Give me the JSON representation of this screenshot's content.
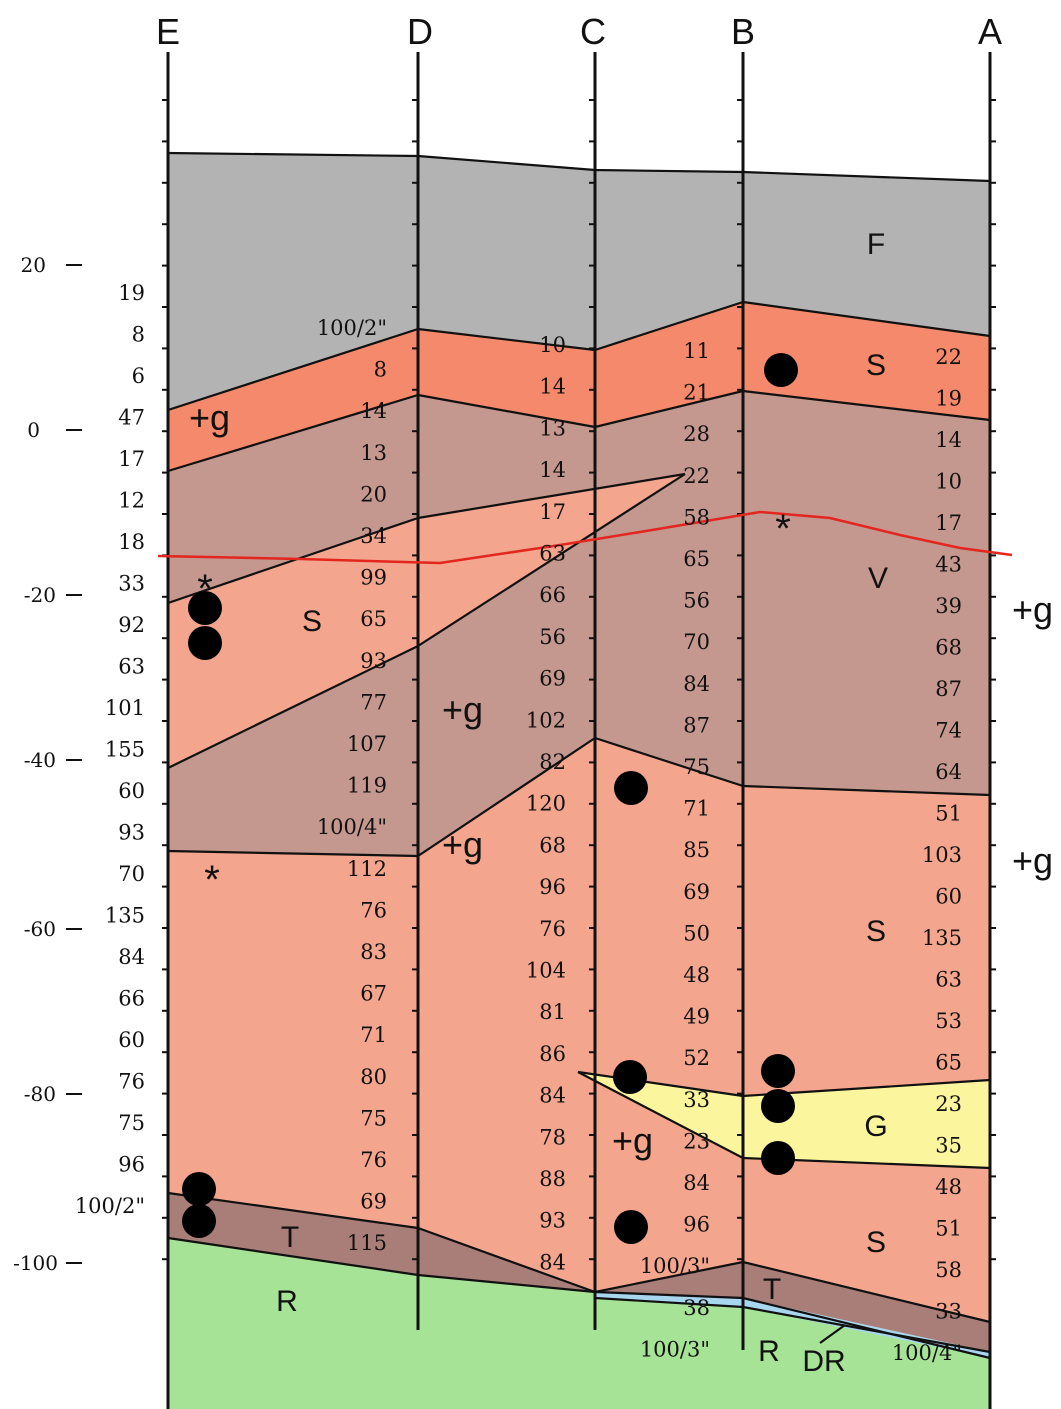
{
  "boreholes": [
    {
      "label": "E"
    },
    {
      "label": "D"
    },
    {
      "label": "C"
    },
    {
      "label": "B"
    },
    {
      "label": "A"
    }
  ],
  "elevation_ticks": [
    "20",
    "0",
    "-20",
    "-40",
    "-60",
    "-80",
    "-100"
  ],
  "layers": {
    "F": "F",
    "S_upper": "S",
    "S_lens": "S",
    "V": "V",
    "S_lower": "S",
    "S_bottom": "S",
    "G": "G",
    "T_left": "T",
    "T_right": "T",
    "R_left": "R",
    "R_right": "R",
    "DR": "DR"
  },
  "gravel_note": "+g",
  "water_level_marker": "*",
  "colors": {
    "fill": "#b3b3b3",
    "sand": "#f4896b",
    "silt": "#c4978f",
    "sand_light": "#f3a58e",
    "gravel": "#fbf59d",
    "till": "#a97e78",
    "rock": "#a7e396",
    "weathered_rock": "#a8d6ef",
    "water_line": "#e3261e"
  },
  "blow_counts": {
    "E": [
      "19",
      "8",
      "6",
      "47",
      "17",
      "12",
      "18",
      "33",
      "92",
      "63",
      "101",
      "155",
      "60",
      "93",
      "70",
      "135",
      "84",
      "66",
      "60",
      "76",
      "75",
      "96",
      "100/2\""
    ],
    "D": [
      "100/2\"",
      "8",
      "14",
      "13",
      "20",
      "34",
      "99",
      "65",
      "93",
      "77",
      "107",
      "119",
      "100/4\"",
      "112",
      "76",
      "83",
      "67",
      "71",
      "80",
      "75",
      "76",
      "69",
      "115"
    ],
    "C": [
      "10",
      "14",
      "13",
      "14",
      "17",
      "63",
      "66",
      "56",
      "69",
      "102",
      "82",
      "120",
      "68",
      "96",
      "76",
      "104",
      "81",
      "86",
      "84",
      "78",
      "88",
      "93",
      "84"
    ],
    "B": [
      "11",
      "21",
      "28",
      "22",
      "58",
      "65",
      "56",
      "70",
      "84",
      "87",
      "75",
      "71",
      "85",
      "69",
      "50",
      "48",
      "49",
      "52",
      "33",
      "23",
      "84",
      "96",
      "100/3\"",
      "38",
      "100/3\""
    ],
    "A": [
      "22",
      "19",
      "14",
      "10",
      "17",
      "43",
      "39",
      "68",
      "87",
      "74",
      "64",
      "51",
      "103",
      "60",
      "135",
      "63",
      "53",
      "65",
      "23",
      "35",
      "48",
      "51",
      "58",
      "33",
      "100/4\""
    ]
  }
}
